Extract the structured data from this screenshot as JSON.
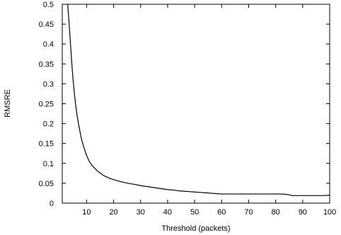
{
  "chart_data": {
    "type": "line",
    "title": "",
    "xlabel": "Threshold (packets)",
    "ylabel": "RMSRE",
    "xlim": [
      1,
      100
    ],
    "ylim": [
      0,
      0.5
    ],
    "xticks": [
      10,
      20,
      30,
      40,
      50,
      60,
      70,
      80,
      90,
      100
    ],
    "yticks": [
      0,
      0.05,
      0.1,
      0.15,
      0.2,
      0.25,
      0.3,
      0.35,
      0.4,
      0.45,
      0.5
    ],
    "xtick_labels": [
      "10",
      "20",
      "30",
      "40",
      "50",
      "60",
      "70",
      "80",
      "90",
      "100"
    ],
    "ytick_labels": [
      "0",
      "0.05",
      "0.1",
      "0.15",
      "0.2",
      "0.25",
      "0.3",
      "0.35",
      "0.4",
      "0.45",
      "0.5"
    ],
    "grid": false,
    "legend": "none",
    "series": [
      {
        "color": "#000000",
        "x": [
          3,
          3.5,
          4,
          4.5,
          5,
          5.5,
          6,
          6.5,
          7,
          7.5,
          8,
          8.5,
          9,
          10,
          11,
          12,
          13,
          14,
          15,
          16,
          17,
          18,
          20,
          22,
          24,
          26,
          28,
          30,
          32,
          34,
          36,
          38,
          40,
          42,
          44,
          46,
          48,
          50,
          52,
          54,
          56,
          58,
          60,
          62,
          64,
          66,
          68,
          70,
          72,
          74,
          76,
          78,
          80,
          82,
          84,
          85,
          86,
          88,
          90,
          92,
          94,
          96,
          98,
          100
        ],
        "y": [
          0.5,
          0.455,
          0.405,
          0.355,
          0.31,
          0.275,
          0.245,
          0.22,
          0.2,
          0.182,
          0.165,
          0.152,
          0.14,
          0.12,
          0.105,
          0.095,
          0.088,
          0.081,
          0.076,
          0.071,
          0.067,
          0.064,
          0.059,
          0.055,
          0.052,
          0.049,
          0.047,
          0.044,
          0.042,
          0.04,
          0.038,
          0.036,
          0.034,
          0.033,
          0.031,
          0.03,
          0.029,
          0.028,
          0.027,
          0.026,
          0.025,
          0.024,
          0.023,
          0.023,
          0.023,
          0.023,
          0.023,
          0.023,
          0.023,
          0.023,
          0.023,
          0.023,
          0.023,
          0.023,
          0.022,
          0.021,
          0.019,
          0.019,
          0.019,
          0.019,
          0.019,
          0.019,
          0.019,
          0.02
        ]
      }
    ]
  }
}
